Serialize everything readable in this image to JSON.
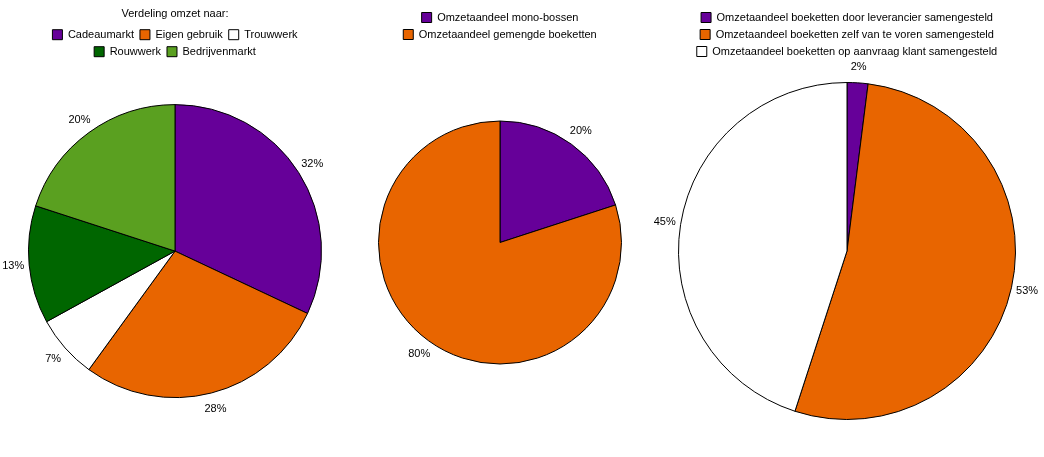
{
  "chart_data": [
    {
      "type": "pie",
      "legend_title": "Verdeling omzet naar:",
      "legend": "top",
      "categories": [
        "Cadeaumarkt",
        "Eigen gebruik",
        "Trouwwerk",
        "Rouwwerk",
        "Bedrijvenmarkt"
      ],
      "values": [
        32,
        28,
        7,
        13,
        20
      ],
      "value_labels": [
        "32%",
        "28%",
        "7%",
        "13%",
        "20%"
      ],
      "colors": [
        "#660099",
        "#e86500",
        "#ffffff",
        "#006600",
        "#5aa020"
      ]
    },
    {
      "type": "pie",
      "legend": "top",
      "categories": [
        "Omzetaandeel mono-bossen",
        "Omzetaandeel gemengde boeketten"
      ],
      "values": [
        20,
        80
      ],
      "value_labels": [
        "20%",
        "80%"
      ],
      "colors": [
        "#660099",
        "#e86500"
      ]
    },
    {
      "type": "pie",
      "legend": "top",
      "categories": [
        "Omzetaandeel boeketten door leverancier samengesteld",
        "Omzetaandeel boeketten zelf van te voren samengesteld",
        "Omzetaandeel boeketten op aanvraag klant samengesteld"
      ],
      "values": [
        2,
        53,
        45
      ],
      "value_labels": [
        "2%",
        "53%",
        "45%"
      ],
      "colors": [
        "#660099",
        "#e86500",
        "#ffffff"
      ]
    }
  ]
}
